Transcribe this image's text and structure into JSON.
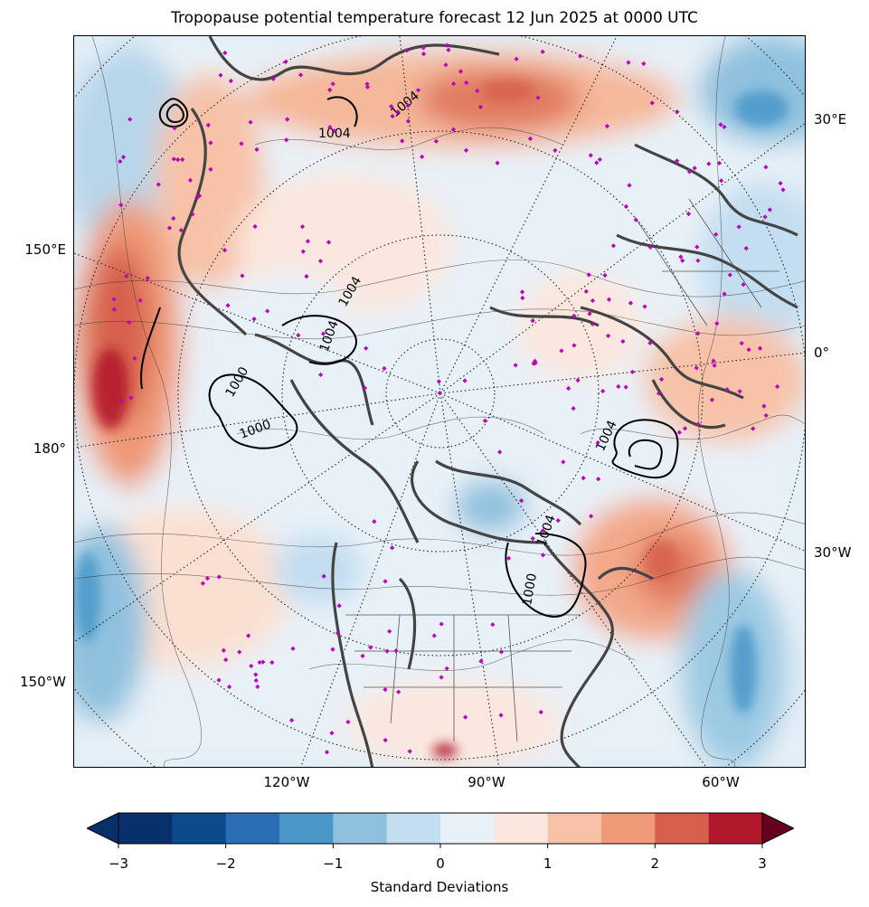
{
  "title": "Tropopause potential temperature forecast 12 Jun 2025 at 0000 UTC",
  "axis_labels": {
    "left": [
      "150°E",
      "180°",
      "150°W"
    ],
    "right": [
      "30°E",
      "0°",
      "30°W"
    ],
    "bottom": [
      "120°W",
      "90°W",
      "60°W"
    ]
  },
  "contour_labels": [
    "1004",
    "1004",
    "1004",
    "1000",
    "1000",
    "1004",
    "1004",
    "1004",
    "1000"
  ],
  "colorbar": {
    "label": "Standard Deviations",
    "ticks": [
      "−3",
      "−2",
      "−1",
      "0",
      "1",
      "2",
      "3"
    ],
    "colors": [
      "#67001f",
      "#08306b",
      "#0d4a8c",
      "#2a6fb5",
      "#4a97c9",
      "#8fc1de",
      "#c3def0",
      "#e8f1f8",
      "#fbe7de",
      "#f7c2a7",
      "#ef9a78",
      "#d6604d",
      "#b2182b",
      "#870a24"
    ]
  },
  "colors": {
    "coastline": "#444444",
    "isobar": "#000000",
    "station_marker": "#bb00bb",
    "grid": "#222222"
  }
}
